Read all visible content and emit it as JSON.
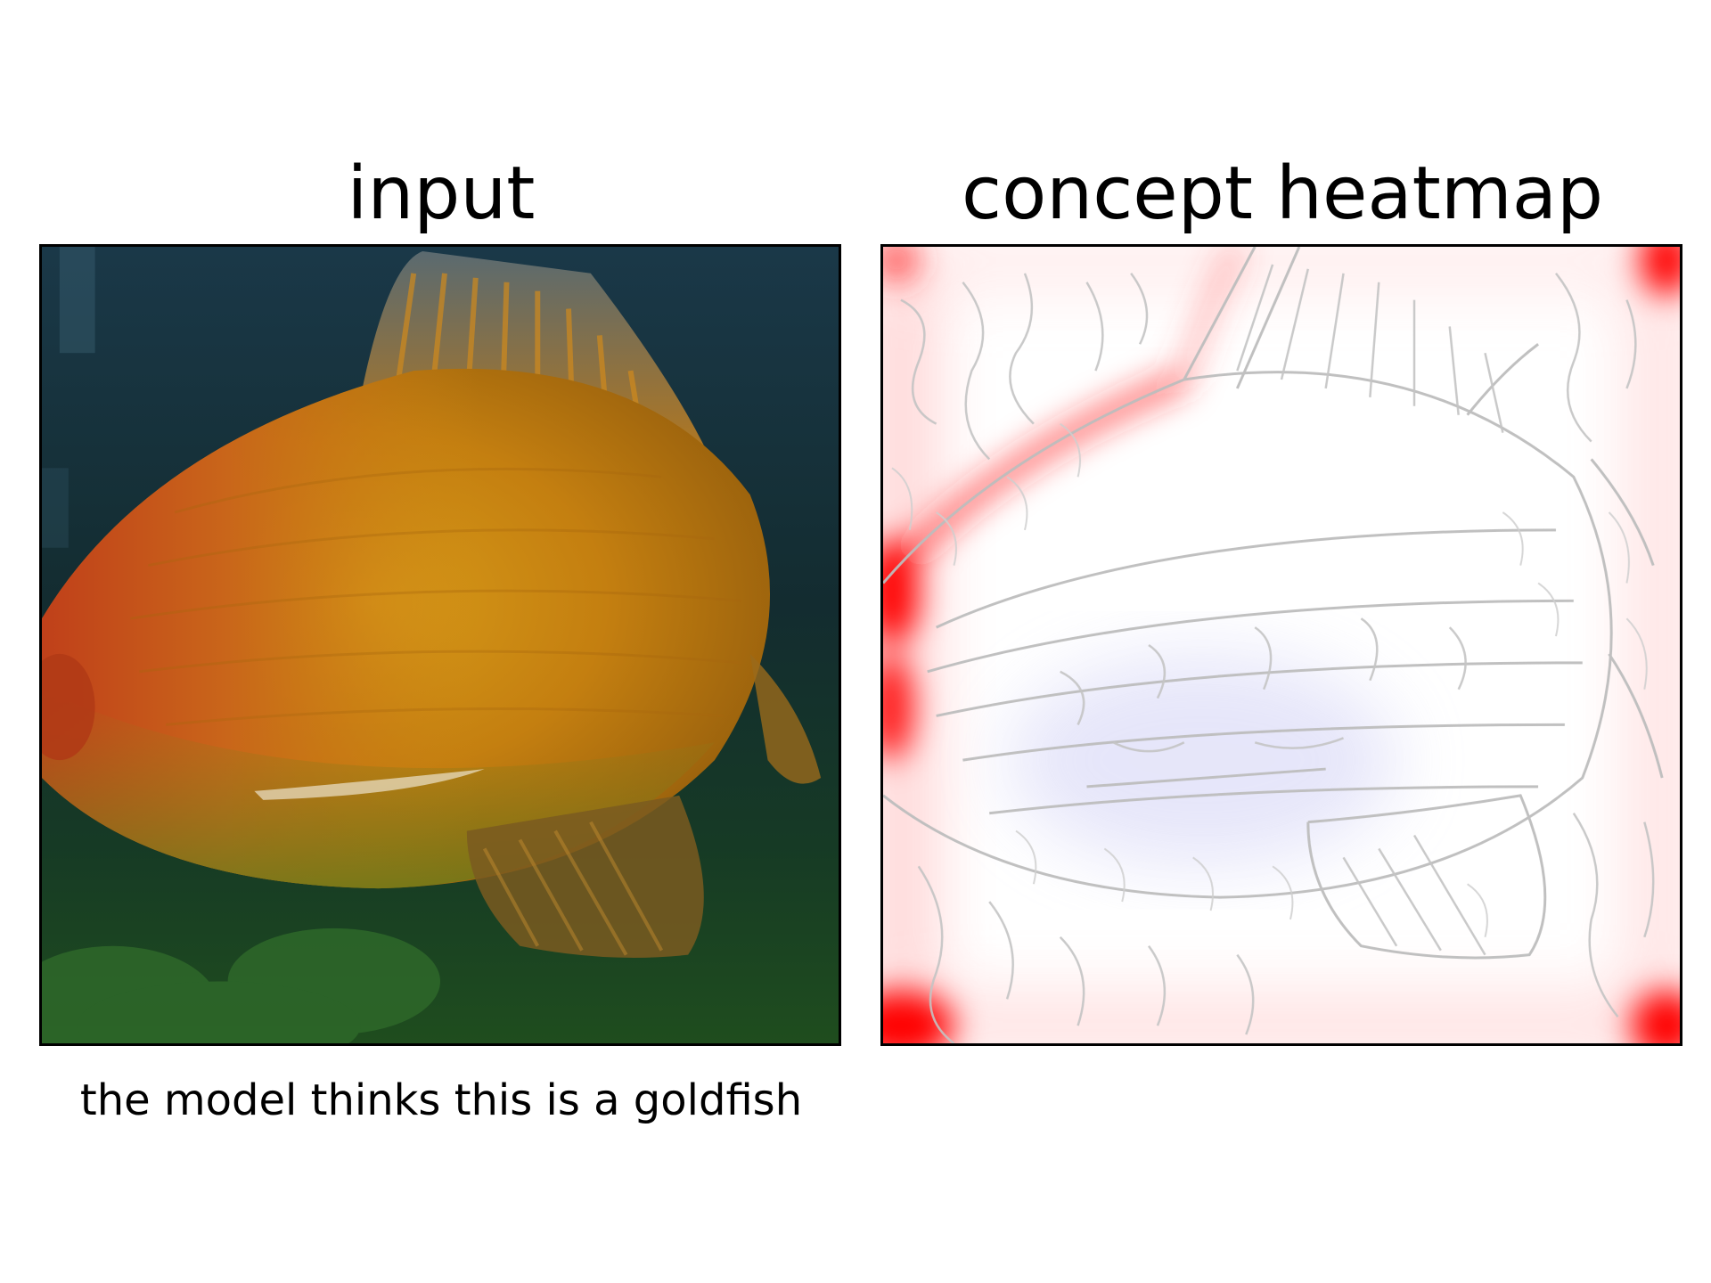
{
  "panels": [
    {
      "title": "input"
    },
    {
      "title": "concept heatmap"
    }
  ],
  "caption": "the model thinks this is a goldfish",
  "colors": {
    "background": "#ffffff",
    "frame": "#000000",
    "water_dark": "#12262b",
    "water_green": "#1d4520",
    "fish_orange": "#c9840f",
    "fish_red": "#c8501a",
    "heat_high": "#ff0000",
    "heat_low": "#c8c8f0",
    "edge_gray": "#bdbdbd"
  }
}
